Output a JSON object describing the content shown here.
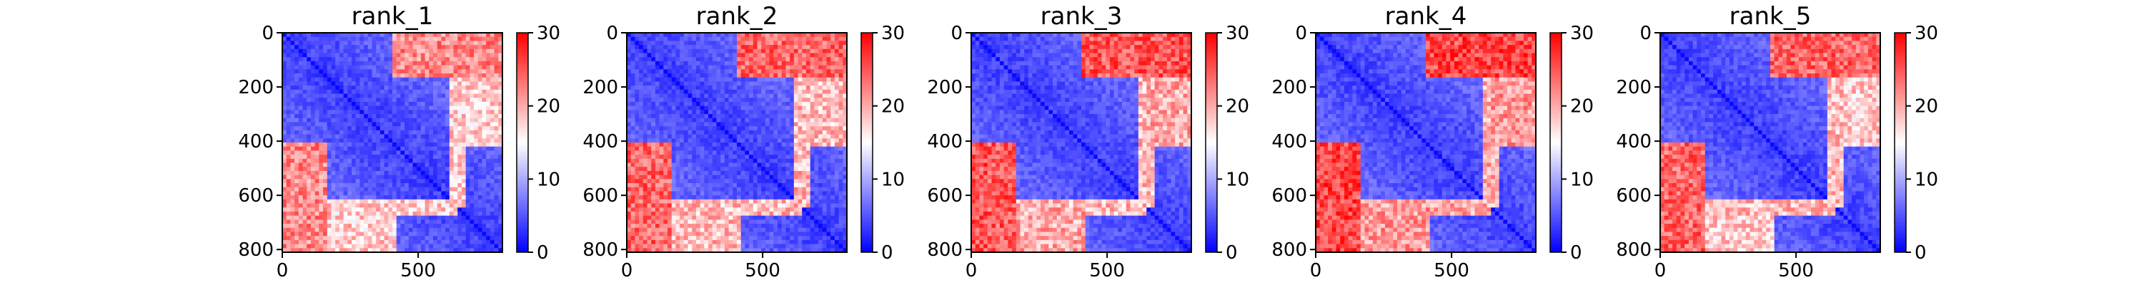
{
  "chart_data": [
    {
      "type": "heatmap",
      "title": "rank_1",
      "x_ticks": [
        0,
        500
      ],
      "y_ticks": [
        0,
        200,
        400,
        600,
        800
      ],
      "xlim": [
        0,
        810
      ],
      "ylim": [
        810,
        0
      ],
      "colorbar": {
        "ticks": [
          0,
          10,
          20,
          30
        ],
        "range": [
          0,
          30
        ],
        "colormap": [
          "#0000ff",
          "#ffffff",
          "#ff0000"
        ]
      },
      "blocks": [
        {
          "rows": [
            0,
            170
          ],
          "cols": [
            400,
            810
          ],
          "value": 22
        },
        {
          "rows": [
            170,
            420
          ],
          "cols": [
            650,
            810
          ],
          "value": 18
        },
        {
          "rows": [
            420,
            460
          ],
          "cols": [
            0,
            160
          ],
          "value": 16
        },
        {
          "rows": [
            620,
            810
          ],
          "cols": [
            0,
            160
          ],
          "value": 22
        },
        {
          "rows": [
            620,
            680
          ],
          "cols": [
            160,
            650
          ],
          "value": 18
        }
      ]
    },
    {
      "type": "heatmap",
      "title": "rank_2",
      "x_ticks": [
        0,
        500
      ],
      "y_ticks": [
        0,
        200,
        400,
        600,
        800
      ],
      "xlim": [
        0,
        810
      ],
      "ylim": [
        810,
        0
      ],
      "colorbar": {
        "ticks": [
          0,
          10,
          20,
          30
        ],
        "range": [
          0,
          30
        ],
        "colormap": [
          "#0000ff",
          "#ffffff",
          "#ff0000"
        ]
      },
      "blocks": [
        {
          "rows": [
            0,
            170
          ],
          "cols": [
            400,
            810
          ],
          "value": 24
        },
        {
          "rows": [
            170,
            420
          ],
          "cols": [
            650,
            810
          ],
          "value": 19
        },
        {
          "rows": [
            420,
            460
          ],
          "cols": [
            0,
            160
          ],
          "value": 17
        },
        {
          "rows": [
            620,
            810
          ],
          "cols": [
            0,
            160
          ],
          "value": 23
        },
        {
          "rows": [
            620,
            680
          ],
          "cols": [
            160,
            650
          ],
          "value": 19
        }
      ]
    },
    {
      "type": "heatmap",
      "title": "rank_3",
      "x_ticks": [
        0,
        500
      ],
      "y_ticks": [
        0,
        200,
        400,
        600,
        800
      ],
      "xlim": [
        0,
        810
      ],
      "ylim": [
        810,
        0
      ],
      "colorbar": {
        "ticks": [
          0,
          10,
          20,
          30
        ],
        "range": [
          0,
          30
        ],
        "colormap": [
          "#0000ff",
          "#ffffff",
          "#ff0000"
        ]
      },
      "blocks": [
        {
          "rows": [
            0,
            170
          ],
          "cols": [
            400,
            810
          ],
          "value": 25
        },
        {
          "rows": [
            170,
            420
          ],
          "cols": [
            650,
            810
          ],
          "value": 20
        },
        {
          "rows": [
            420,
            460
          ],
          "cols": [
            0,
            160
          ],
          "value": 18
        },
        {
          "rows": [
            620,
            810
          ],
          "cols": [
            0,
            160
          ],
          "value": 24
        },
        {
          "rows": [
            620,
            680
          ],
          "cols": [
            160,
            650
          ],
          "value": 19
        }
      ]
    },
    {
      "type": "heatmap",
      "title": "rank_4",
      "x_ticks": [
        0,
        500
      ],
      "y_ticks": [
        0,
        200,
        400,
        600,
        800
      ],
      "xlim": [
        0,
        810
      ],
      "ylim": [
        810,
        0
      ],
      "colorbar": {
        "ticks": [
          0,
          10,
          20,
          30
        ],
        "range": [
          0,
          30
        ],
        "colormap": [
          "#0000ff",
          "#ffffff",
          "#ff0000"
        ]
      },
      "blocks": [
        {
          "rows": [
            0,
            170
          ],
          "cols": [
            400,
            810
          ],
          "value": 26
        },
        {
          "rows": [
            170,
            420
          ],
          "cols": [
            650,
            810
          ],
          "value": 21
        },
        {
          "rows": [
            420,
            620
          ],
          "cols": [
            0,
            160
          ],
          "value": 20
        },
        {
          "rows": [
            620,
            810
          ],
          "cols": [
            0,
            160
          ],
          "value": 25
        },
        {
          "rows": [
            620,
            680
          ],
          "cols": [
            160,
            650
          ],
          "value": 20
        }
      ]
    },
    {
      "type": "heatmap",
      "title": "rank_5",
      "x_ticks": [
        0,
        500
      ],
      "y_ticks": [
        0,
        200,
        400,
        600,
        800
      ],
      "xlim": [
        0,
        810
      ],
      "ylim": [
        810,
        0
      ],
      "colorbar": {
        "ticks": [
          0,
          10,
          20,
          30
        ],
        "range": [
          0,
          30
        ],
        "colormap": [
          "#0000ff",
          "#ffffff",
          "#ff0000"
        ]
      },
      "blocks": [
        {
          "rows": [
            0,
            170
          ],
          "cols": [
            400,
            810
          ],
          "value": 24
        },
        {
          "rows": [
            170,
            420
          ],
          "cols": [
            650,
            810
          ],
          "value": 18
        },
        {
          "rows": [
            420,
            460
          ],
          "cols": [
            0,
            160
          ],
          "value": 17
        },
        {
          "rows": [
            620,
            810
          ],
          "cols": [
            0,
            160
          ],
          "value": 23
        },
        {
          "rows": [
            620,
            680
          ],
          "cols": [
            160,
            650
          ],
          "value": 19
        }
      ]
    }
  ]
}
